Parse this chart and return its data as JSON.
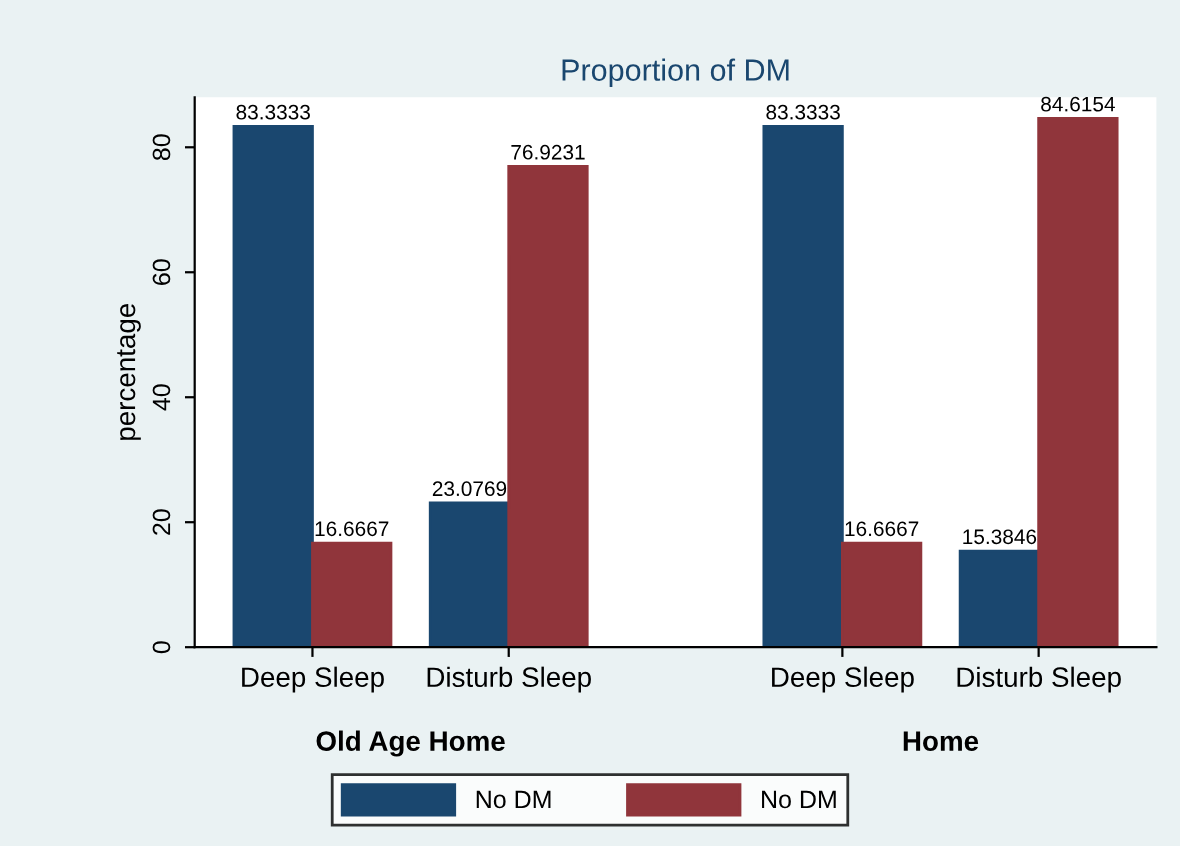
{
  "chart_data": {
    "type": "bar",
    "title": "Proportion of DM",
    "ylabel": "percentage",
    "categories": [
      "Deep Sleep",
      "Disturb Sleep",
      "Deep Sleep",
      "Disturb Sleep"
    ],
    "series": [
      {
        "name": "No DM",
        "color": "#1a476f",
        "values": [
          83.3333,
          23.0769,
          83.3333,
          15.3846
        ]
      },
      {
        "name": "No DM",
        "color": "#90353b",
        "values": [
          16.6667,
          76.9231,
          16.6667,
          84.6154
        ]
      }
    ],
    "annotations": [
      "Old Age Home",
      "Home"
    ],
    "ylim": [
      0,
      88
    ],
    "yticks": [
      0,
      20,
      40,
      60,
      80
    ],
    "data_labels": true,
    "grid": false,
    "legend": "bottom"
  }
}
